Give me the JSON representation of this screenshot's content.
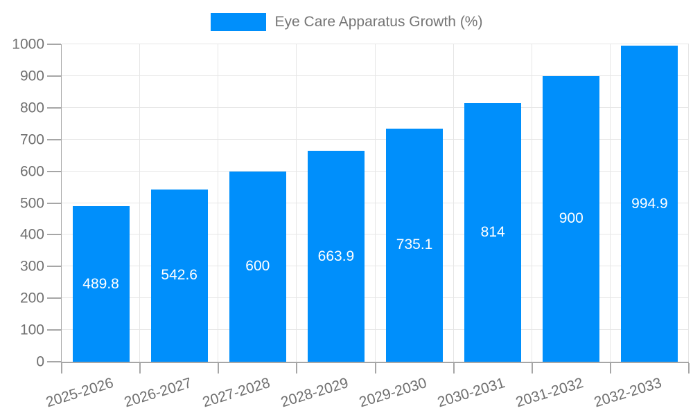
{
  "legend": {
    "label": "Eye Care Apparatus Growth (%)"
  },
  "chart_data": {
    "type": "bar",
    "title": "Eye Care Apparatus Growth (%)",
    "categories": [
      "2025-2026",
      "2026-2027",
      "2027-2028",
      "2028-2029",
      "2029-2030",
      "2030-2031",
      "2031-2032",
      "2032-2033"
    ],
    "values": [
      489.8,
      542.6,
      600,
      663.9,
      735.1,
      814,
      900,
      994.9
    ],
    "value_labels": [
      "489.8",
      "542.6",
      "600",
      "663.9",
      "735.1",
      "814",
      "900",
      "994.9"
    ],
    "xlabel": "",
    "ylabel": "",
    "ylim": [
      0,
      1000
    ],
    "ytick_step": 100,
    "ytick_labels": [
      "0",
      "100",
      "200",
      "300",
      "400",
      "500",
      "600",
      "700",
      "800",
      "900",
      "1000"
    ],
    "grid": true,
    "legend_position": "top",
    "data_label_position": "middle-of-bar",
    "colors": {
      "bar": "#008ffb",
      "grid": "#e6e6e6",
      "axis": "#a6a6a6",
      "tick": "#a6a6a6",
      "axis_text": "#707070",
      "legend_text": "#757575",
      "data_label": "#ffffff",
      "background": "#ffffff"
    }
  }
}
